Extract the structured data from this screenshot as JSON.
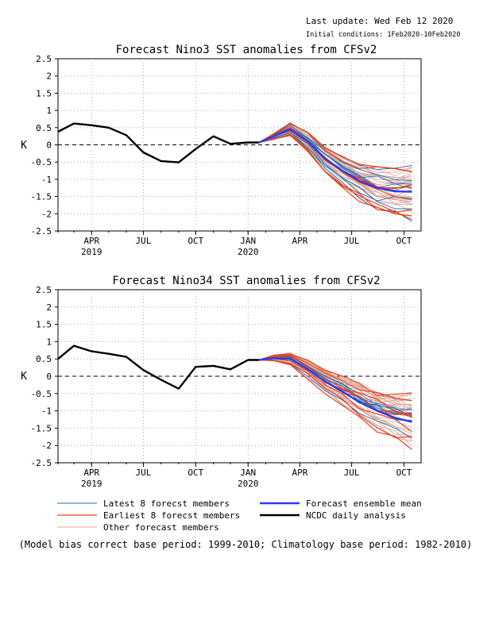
{
  "header": {
    "last_update": "Last update: Wed Feb 12 2020",
    "initial_conditions": "Initial conditions: 1Feb2020-10Feb2020"
  },
  "legend": {
    "latest": "Latest 8 forecst members",
    "earliest": "Earliest 8 forecst members",
    "other": "Other forecast members",
    "mean": "Forecast ensemble mean",
    "ncdc": "NCDC daily analysis"
  },
  "footnote": "(Model bias correct base period: 1999-2010; Climatology base period: 1982-2010)",
  "colors": {
    "latest": "#1f6fb5",
    "earliest": "#e8401c",
    "other": "#d9a79a",
    "mean": "#2a3cf0",
    "ncdc": "#000000"
  },
  "chart_data": [
    {
      "type": "line",
      "title": "Forecast Nino3 SST anomalies from CFSv2",
      "ylabel": "K",
      "ylim": [
        -2.5,
        2.5
      ],
      "yticks": [
        "2.5",
        "2",
        "1.5",
        "1",
        "0.5",
        "0",
        "-0.5",
        "-1",
        "-1.5",
        "-2",
        "-2.5"
      ],
      "xlim": [
        "2019-02-01",
        "2020-10-31"
      ],
      "xticks": [
        {
          "label": "APR",
          "date": "2019-04-01",
          "year": "2019"
        },
        {
          "label": "JUL",
          "date": "2019-07-01"
        },
        {
          "label": "OCT",
          "date": "2019-10-01"
        },
        {
          "label": "JAN",
          "date": "2020-01-01",
          "year": "2020"
        },
        {
          "label": "APR",
          "date": "2020-04-01"
        },
        {
          "label": "JUL",
          "date": "2020-07-01"
        },
        {
          "label": "OCT",
          "date": "2020-10-01"
        }
      ],
      "grid": true,
      "zero_line": "dashed",
      "series": [
        {
          "name": "NCDC daily analysis",
          "x": [
            "2019-02-01",
            "2019-03-01",
            "2019-04-01",
            "2019-05-01",
            "2019-06-01",
            "2019-07-01",
            "2019-08-01",
            "2019-09-01",
            "2019-10-01",
            "2019-11-01",
            "2019-12-01",
            "2020-01-01",
            "2020-01-20"
          ],
          "values": [
            0.38,
            0.62,
            0.57,
            0.5,
            0.28,
            -0.22,
            -0.47,
            -0.51,
            -0.12,
            0.25,
            0.03,
            0.07,
            0.07
          ]
        },
        {
          "name": "Forecast ensemble mean",
          "x": [
            "2020-01-20",
            "2020-02-15",
            "2020-03-15",
            "2020-04-15",
            "2020-05-15",
            "2020-06-15",
            "2020-07-15",
            "2020-08-15",
            "2020-09-15",
            "2020-10-15"
          ],
          "values": [
            0.07,
            0.25,
            0.45,
            0.1,
            -0.4,
            -0.75,
            -1.05,
            -1.25,
            -1.35,
            -1.36
          ]
        }
      ]
    },
    {
      "type": "line",
      "title": "Forecast Nino34 SST anomalies from CFSv2",
      "ylabel": "K",
      "ylim": [
        -2.5,
        2.5
      ],
      "yticks": [
        "2.5",
        "2",
        "1.5",
        "1",
        "0.5",
        "0",
        "-0.5",
        "-1",
        "-1.5",
        "-2",
        "-2.5"
      ],
      "xlim": [
        "2019-02-01",
        "2020-10-31"
      ],
      "xticks": [
        {
          "label": "APR",
          "date": "2019-04-01",
          "year": "2019"
        },
        {
          "label": "JUL",
          "date": "2019-07-01"
        },
        {
          "label": "OCT",
          "date": "2019-10-01"
        },
        {
          "label": "JAN",
          "date": "2020-01-01",
          "year": "2020"
        },
        {
          "label": "APR",
          "date": "2020-04-01"
        },
        {
          "label": "JUL",
          "date": "2020-07-01"
        },
        {
          "label": "OCT",
          "date": "2020-10-01"
        }
      ],
      "grid": true,
      "zero_line": "dashed",
      "series": [
        {
          "name": "NCDC daily analysis",
          "x": [
            "2019-02-01",
            "2019-03-01",
            "2019-04-01",
            "2019-05-01",
            "2019-06-01",
            "2019-07-01",
            "2019-08-01",
            "2019-09-01",
            "2019-10-01",
            "2019-11-01",
            "2019-12-01",
            "2020-01-01",
            "2020-01-20"
          ],
          "values": [
            0.5,
            0.88,
            0.72,
            0.65,
            0.56,
            0.18,
            -0.1,
            -0.36,
            0.27,
            0.3,
            0.2,
            0.47,
            0.47
          ]
        },
        {
          "name": "Forecast ensemble mean",
          "x": [
            "2020-01-20",
            "2020-02-15",
            "2020-03-15",
            "2020-04-15",
            "2020-05-15",
            "2020-06-15",
            "2020-07-15",
            "2020-08-15",
            "2020-09-15",
            "2020-10-15"
          ],
          "values": [
            0.47,
            0.52,
            0.5,
            0.2,
            -0.15,
            -0.45,
            -0.75,
            -1.0,
            -1.2,
            -1.32
          ]
        }
      ]
    }
  ]
}
